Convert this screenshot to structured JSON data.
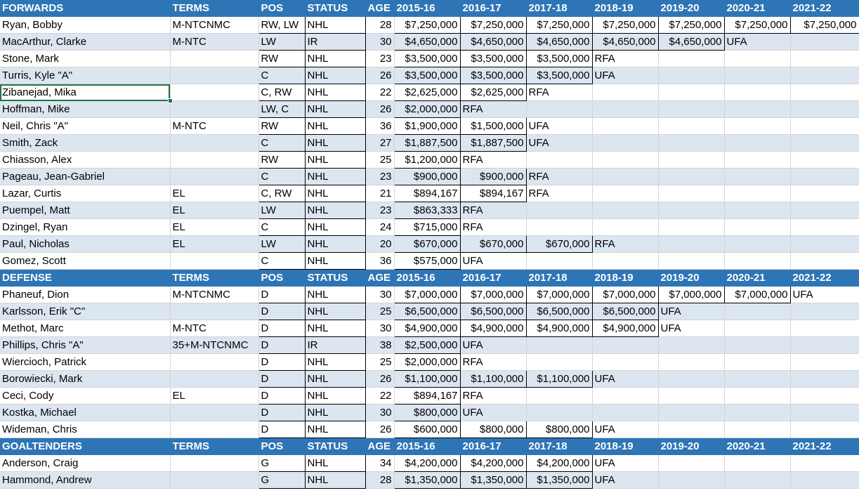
{
  "headers": {
    "terms": "TERMS",
    "pos": "POS",
    "status": "STATUS",
    "age": "AGE",
    "seasons": [
      "2015-16",
      "2016-17",
      "2017-18",
      "2018-19",
      "2019-20",
      "2020-21",
      "2021-22"
    ]
  },
  "sections": [
    {
      "title": "FORWARDS",
      "rows": [
        {
          "name": "Ryan, Bobby",
          "terms": "M-NTCNMC",
          "pos": "RW, LW",
          "status": "NHL",
          "age": "28",
          "seasons": [
            "$7,250,000",
            "$7,250,000",
            "$7,250,000",
            "$7,250,000",
            "$7,250,000",
            "$7,250,000",
            "$7,250,000"
          ]
        },
        {
          "name": "MacArthur, Clarke",
          "terms": "M-NTC",
          "pos": "LW",
          "status": "IR",
          "age": "30",
          "seasons": [
            "$4,650,000",
            "$4,650,000",
            "$4,650,000",
            "$4,650,000",
            "$4,650,000",
            "UFA",
            ""
          ]
        },
        {
          "name": "Stone, Mark",
          "terms": "",
          "pos": "RW",
          "status": "NHL",
          "age": "23",
          "seasons": [
            "$3,500,000",
            "$3,500,000",
            "$3,500,000",
            "RFA",
            "",
            "",
            ""
          ]
        },
        {
          "name": "Turris, Kyle \"A\"",
          "terms": "",
          "pos": "C",
          "status": "NHL",
          "age": "26",
          "seasons": [
            "$3,500,000",
            "$3,500,000",
            "$3,500,000",
            "UFA",
            "",
            "",
            ""
          ]
        },
        {
          "name": "Zibanejad, Mika",
          "terms": "",
          "pos": "C, RW",
          "status": "NHL",
          "age": "22",
          "seasons": [
            "$2,625,000",
            "$2,625,000",
            "RFA",
            "",
            "",
            "",
            ""
          ]
        },
        {
          "name": "Hoffman, Mike",
          "terms": "",
          "pos": "LW, C",
          "status": "NHL",
          "age": "26",
          "seasons": [
            "$2,000,000",
            "RFA",
            "",
            "",
            "",
            "",
            ""
          ]
        },
        {
          "name": "Neil, Chris \"A\"",
          "terms": "M-NTC",
          "pos": "RW",
          "status": "NHL",
          "age": "36",
          "seasons": [
            "$1,900,000",
            "$1,500,000",
            "UFA",
            "",
            "",
            "",
            ""
          ]
        },
        {
          "name": "Smith, Zack",
          "terms": "",
          "pos": "C",
          "status": "NHL",
          "age": "27",
          "seasons": [
            "$1,887,500",
            "$1,887,500",
            "UFA",
            "",
            "",
            "",
            ""
          ]
        },
        {
          "name": "Chiasson, Alex",
          "terms": "",
          "pos": "RW",
          "status": "NHL",
          "age": "25",
          "seasons": [
            "$1,200,000",
            "RFA",
            "",
            "",
            "",
            "",
            ""
          ]
        },
        {
          "name": "Pageau, Jean-Gabriel",
          "terms": "",
          "pos": "C",
          "status": "NHL",
          "age": "23",
          "seasons": [
            "$900,000",
            "$900,000",
            "RFA",
            "",
            "",
            "",
            ""
          ]
        },
        {
          "name": "Lazar, Curtis",
          "terms": "EL",
          "pos": "C, RW",
          "status": "NHL",
          "age": "21",
          "seasons": [
            "$894,167",
            "$894,167",
            "RFA",
            "",
            "",
            "",
            ""
          ]
        },
        {
          "name": "Puempel, Matt",
          "terms": "EL",
          "pos": "LW",
          "status": "NHL",
          "age": "23",
          "seasons": [
            "$863,333",
            "RFA",
            "",
            "",
            "",
            "",
            ""
          ]
        },
        {
          "name": "Dzingel, Ryan",
          "terms": "EL",
          "pos": "C",
          "status": "NHL",
          "age": "24",
          "seasons": [
            "$715,000",
            "RFA",
            "",
            "",
            "",
            "",
            ""
          ]
        },
        {
          "name": "Paul, Nicholas",
          "terms": "EL",
          "pos": "LW",
          "status": "NHL",
          "age": "20",
          "seasons": [
            "$670,000",
            "$670,000",
            "$670,000",
            "RFA",
            "",
            "",
            ""
          ]
        },
        {
          "name": "Gomez, Scott",
          "terms": "",
          "pos": "C",
          "status": "NHL",
          "age": "36",
          "seasons": [
            "$575,000",
            "UFA",
            "",
            "",
            "",
            "",
            ""
          ]
        }
      ]
    },
    {
      "title": "DEFENSE",
      "rows": [
        {
          "name": "Phaneuf, Dion",
          "terms": "M-NTCNMC",
          "pos": "D",
          "status": "NHL",
          "age": "30",
          "seasons": [
            "$7,000,000",
            "$7,000,000",
            "$7,000,000",
            "$7,000,000",
            "$7,000,000",
            "$7,000,000",
            "UFA"
          ]
        },
        {
          "name": "Karlsson, Erik \"C\"",
          "terms": "",
          "pos": "D",
          "status": "NHL",
          "age": "25",
          "seasons": [
            "$6,500,000",
            "$6,500,000",
            "$6,500,000",
            "$6,500,000",
            "UFA",
            "",
            ""
          ]
        },
        {
          "name": "Methot, Marc",
          "terms": "M-NTC",
          "pos": "D",
          "status": "NHL",
          "age": "30",
          "seasons": [
            "$4,900,000",
            "$4,900,000",
            "$4,900,000",
            "$4,900,000",
            "UFA",
            "",
            ""
          ]
        },
        {
          "name": "Phillips, Chris \"A\"",
          "terms": "35+M-NTCNMC",
          "pos": "D",
          "status": "IR",
          "age": "38",
          "seasons": [
            "$2,500,000",
            "UFA",
            "",
            "",
            "",
            "",
            ""
          ]
        },
        {
          "name": "Wiercioch, Patrick",
          "terms": "",
          "pos": "D",
          "status": "NHL",
          "age": "25",
          "seasons": [
            "$2,000,000",
            "RFA",
            "",
            "",
            "",
            "",
            ""
          ]
        },
        {
          "name": "Borowiecki, Mark",
          "terms": "",
          "pos": "D",
          "status": "NHL",
          "age": "26",
          "seasons": [
            "$1,100,000",
            "$1,100,000",
            "$1,100,000",
            "UFA",
            "",
            "",
            ""
          ]
        },
        {
          "name": "Ceci, Cody",
          "terms": "EL",
          "pos": "D",
          "status": "NHL",
          "age": "22",
          "seasons": [
            "$894,167",
            "RFA",
            "",
            "",
            "",
            "",
            ""
          ]
        },
        {
          "name": "Kostka, Michael",
          "terms": "",
          "pos": "D",
          "status": "NHL",
          "age": "30",
          "seasons": [
            "$800,000",
            "UFA",
            "",
            "",
            "",
            "",
            ""
          ]
        },
        {
          "name": "Wideman, Chris",
          "terms": "",
          "pos": "D",
          "status": "NHL",
          "age": "26",
          "seasons": [
            "$600,000",
            "$800,000",
            "$800,000",
            "UFA",
            "",
            "",
            ""
          ]
        }
      ]
    },
    {
      "title": "GOALTENDERS",
      "rows": [
        {
          "name": "Anderson, Craig",
          "terms": "",
          "pos": "G",
          "status": "NHL",
          "age": "34",
          "seasons": [
            "$4,200,000",
            "$4,200,000",
            "$4,200,000",
            "UFA",
            "",
            "",
            ""
          ]
        },
        {
          "name": "Hammond, Andrew",
          "terms": "",
          "pos": "G",
          "status": "NHL",
          "age": "28",
          "seasons": [
            "$1,350,000",
            "$1,350,000",
            "$1,350,000",
            "UFA",
            "",
            "",
            ""
          ]
        }
      ]
    }
  ],
  "colors": {
    "header_bg": "#2e75b6",
    "band_bg": "#dce6f1",
    "selection": "#217346"
  }
}
